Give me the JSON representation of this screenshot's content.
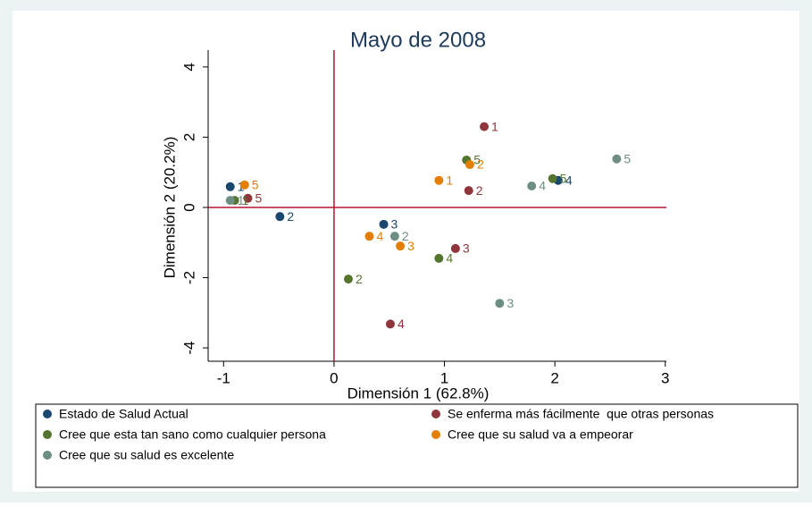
{
  "chart_data": {
    "type": "scatter",
    "title": "Mayo de 2008",
    "x_label": "Dimensión 1 (62.8%)",
    "y_label": "Dimensión 2 (20.2%)",
    "xlim": [
      -1.14,
      3.01
    ],
    "ylim": [
      -4.38,
      4.48
    ],
    "xticks": [
      -1,
      0,
      1,
      2,
      3
    ],
    "yticks": [
      -4,
      -2,
      0,
      2,
      4
    ],
    "reference_lines": {
      "x": 0,
      "y": 0,
      "color": "#b0172e"
    },
    "series": [
      {
        "name": "Estado de Salud Actual",
        "color": "#1a476f",
        "x": [
          -0.94,
          -0.49,
          0.45,
          2.03
        ],
        "y": [
          0.59,
          -0.26,
          -0.48,
          0.77
        ],
        "labels": [
          "1",
          "2",
          "3",
          "4"
        ]
      },
      {
        "name": "Se enferma más fácilmente  que otras personas",
        "color": "#90353b",
        "x": [
          1.36,
          1.22,
          1.1,
          0.51,
          -0.78
        ],
        "y": [
          2.3,
          0.48,
          -1.17,
          -3.32,
          0.26
        ],
        "labels": [
          "1",
          "2",
          "3",
          "4",
          "5"
        ]
      },
      {
        "name": "Cree que esta tan sano como cualquier persona",
        "color": "#55752f",
        "x": [
          -0.9,
          0.13,
          0.95,
          1.2,
          1.98
        ],
        "y": [
          0.2,
          -2.04,
          -1.45,
          1.35,
          0.82
        ],
        "labels": [
          "1",
          "2",
          "4",
          "5",
          "5"
        ]
      },
      {
        "name": "Cree que su salud va a empeorar",
        "color": "#e37e00",
        "x": [
          0.95,
          1.23,
          0.6,
          0.32,
          -0.81
        ],
        "y": [
          0.77,
          1.22,
          -1.1,
          -0.82,
          0.64
        ],
        "labels": [
          "1",
          "2",
          "3",
          "4",
          "5"
        ]
      },
      {
        "name": "Cree que su salud es excelente",
        "color": "#6e8e84",
        "x": [
          -0.94,
          0.55,
          1.5,
          1.79,
          2.56
        ],
        "y": [
          0.2,
          -0.82,
          -2.73,
          0.61,
          1.38
        ],
        "labels": [
          "1",
          "2",
          "3",
          "4",
          "5"
        ]
      }
    ]
  }
}
